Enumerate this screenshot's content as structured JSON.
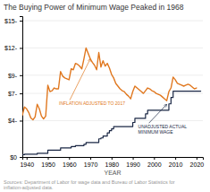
{
  "chart_data": {
    "type": "line",
    "title": "The Buying Power of Minimum Wage Peaked in 1968",
    "x_label": "YEAR",
    "source": "Sources: Department of Labor for wage data and Bureau of Labor Statistics for inflation-adjusted data.",
    "xlim": [
      1938,
      2023
    ],
    "ylim": [
      0,
      15.5
    ],
    "xticks": [
      1940,
      1950,
      1960,
      1970,
      1980,
      1990,
      2000,
      2010,
      2020
    ],
    "yticks": [
      {
        "value": 0,
        "label": "$0"
      },
      {
        "value": 4,
        "label": "$4-"
      },
      {
        "value": 7,
        "label": "$7-"
      },
      {
        "value": 9,
        "label": "$9-"
      },
      {
        "value": 12,
        "label": "$12-"
      },
      {
        "value": 15,
        "label": "$15-"
      }
    ],
    "grid": true,
    "series": [
      {
        "type": "line",
        "color": "#e07820",
        "x": [
          1938,
          1939,
          1940,
          1941,
          1942,
          1943,
          1944,
          1945,
          1946,
          1947,
          1948,
          1949,
          1950,
          1951,
          1952,
          1953,
          1954,
          1955,
          1956,
          1957,
          1958,
          1959,
          1960,
          1961,
          1962,
          1963,
          1964,
          1965,
          1966,
          1967,
          1968,
          1969,
          1970,
          1971,
          1972,
          1973,
          1974,
          1975,
          1976,
          1977,
          1978,
          1979,
          1980,
          1981,
          1982,
          1983,
          1984,
          1985,
          1986,
          1987,
          1988,
          1989,
          1990,
          1991,
          1992,
          1993,
          1994,
          1995,
          1996,
          1997,
          1998,
          1999,
          2000,
          2001,
          2002,
          2003,
          2004,
          2005,
          2006,
          2007,
          2008,
          2009,
          2010,
          2011,
          2012,
          2013,
          2014,
          2015,
          2016,
          2017,
          2018,
          2019,
          2020
        ],
        "values": [
          4.6,
          5.5,
          5.3,
          4.9,
          4.3,
          4.1,
          4.4,
          5.8,
          5.3,
          4.5,
          4.2,
          4.5,
          7.9,
          7.2,
          7.3,
          7.6,
          7.5,
          7.5,
          9.4,
          8.9,
          8.7,
          8.6,
          8.5,
          9.7,
          9.6,
          10.3,
          10.2,
          10.0,
          9.7,
          10.8,
          12.0,
          11.4,
          10.8,
          10.4,
          10.1,
          9.6,
          11.5,
          9.9,
          10.6,
          10.0,
          10.3,
          9.8,
          9.1,
          8.7,
          8.1,
          7.8,
          7.5,
          7.3,
          7.2,
          6.9,
          6.7,
          6.4,
          7.2,
          7.8,
          7.6,
          7.4,
          7.2,
          7.0,
          7.3,
          7.6,
          7.5,
          7.3,
          7.2,
          7.0,
          6.9,
          6.8,
          6.6,
          6.4,
          6.2,
          7.2,
          7.6,
          8.8,
          8.5,
          8.1,
          8.0,
          7.9,
          7.8,
          7.9,
          8.0,
          7.9,
          7.7,
          7.5,
          7.6
        ]
      },
      {
        "type": "step",
        "color": "#1a2744",
        "x": [
          1938,
          1939,
          1940,
          1945,
          1946,
          1950,
          1951,
          1956,
          1957,
          1961,
          1962,
          1963,
          1964,
          1967,
          1968,
          1969,
          1974,
          1975,
          1976,
          1977,
          1978,
          1979,
          1980,
          1981,
          1989,
          1990,
          1991,
          1995,
          1996,
          1997,
          2006,
          2007,
          2008,
          2009,
          2022
        ],
        "values": [
          0.25,
          0.3,
          0.3,
          0.4,
          0.4,
          0.75,
          0.75,
          1.0,
          1.0,
          1.15,
          1.15,
          1.25,
          1.25,
          1.4,
          1.6,
          1.6,
          2.0,
          2.1,
          2.3,
          2.3,
          2.65,
          2.9,
          3.1,
          3.35,
          3.35,
          3.8,
          4.25,
          4.25,
          4.75,
          5.15,
          5.15,
          5.85,
          6.55,
          7.25,
          7.25
        ]
      }
    ],
    "annotations": [
      {
        "text": "INFLATION ADJUSTED TO 2017",
        "x": 1970,
        "y": 10.8,
        "color": "#e07820"
      },
      {
        "text": "UNADJUSTED ACTUAL\nMINIMUM WAGE",
        "x": 2006,
        "y": 5.8,
        "color": "#1a2744"
      }
    ]
  }
}
